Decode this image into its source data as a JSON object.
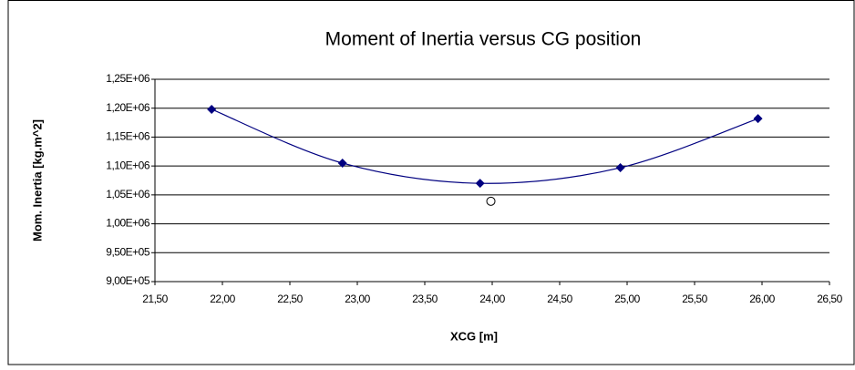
{
  "chart_data": {
    "type": "scatter",
    "title": "Moment of Inertia versus CG position",
    "xlabel": "XCG [m]",
    "ylabel": "Mom. Inertia [kg.m^2]",
    "series": [
      {
        "color": "#000080",
        "marker": "diamond",
        "line": "smooth",
        "x": [
          21.92,
          22.89,
          23.91,
          24.95,
          25.97
        ],
        "values": [
          1198000,
          1105000,
          1070000,
          1097000,
          1182000
        ]
      },
      {
        "color": "#000000",
        "marker": "open-circle",
        "line": "none",
        "x": [
          23.99
        ],
        "values": [
          1039000
        ]
      }
    ],
    "xlim": [
      21.5,
      26.5
    ],
    "xticks": [
      {
        "value": 21.5,
        "label": "21,50"
      },
      {
        "value": 22,
        "label": "22,00"
      },
      {
        "value": 22.5,
        "label": "22,50"
      },
      {
        "value": 23,
        "label": "23,00"
      },
      {
        "value": 23.5,
        "label": "23,50"
      },
      {
        "value": 24,
        "label": "24,00"
      },
      {
        "value": 24.5,
        "label": "24,50"
      },
      {
        "value": 25,
        "label": "25,00"
      },
      {
        "value": 25.5,
        "label": "25,50"
      },
      {
        "value": 26,
        "label": "26,00"
      },
      {
        "value": 26.5,
        "label": "26,50"
      }
    ],
    "ylim": [
      900000,
      1250000
    ],
    "yticks": [
      {
        "value": 900000,
        "label": "9,00E+05"
      },
      {
        "value": 950000,
        "label": "9,50E+05"
      },
      {
        "value": 1000000,
        "label": "1,00E+06"
      },
      {
        "value": 1050000,
        "label": "1,05E+06"
      },
      {
        "value": 1100000,
        "label": "1,10E+06"
      },
      {
        "value": 1150000,
        "label": "1,15E+06"
      },
      {
        "value": 1200000,
        "label": "1,20E+06"
      },
      {
        "value": 1250000,
        "label": "1,25E+06"
      }
    ],
    "grid": true
  }
}
